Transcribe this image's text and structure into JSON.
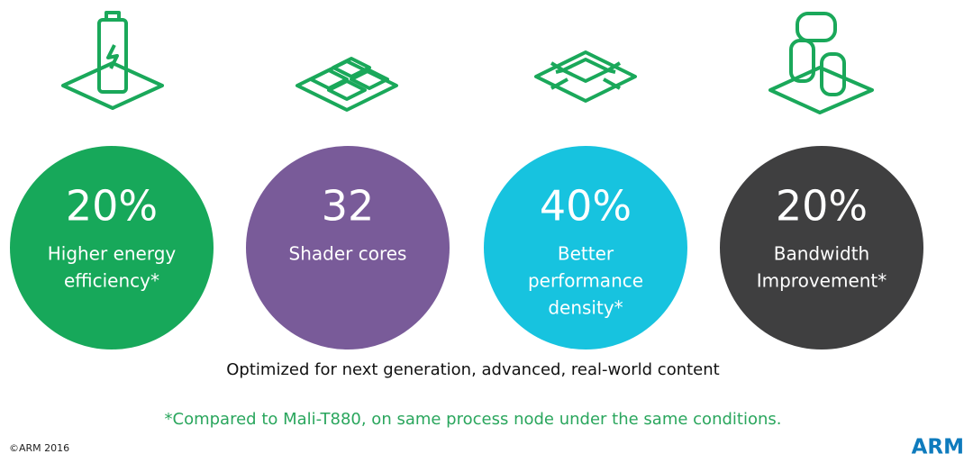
{
  "stats": [
    {
      "value": "20%",
      "label": [
        "Higher energy",
        "efficiency*"
      ],
      "color": "#17a85a"
    },
    {
      "value": "32",
      "label": [
        "Shader cores"
      ],
      "color": "#795b99"
    },
    {
      "value": "40%",
      "label": [
        "Better",
        "performance",
        "density*"
      ],
      "color": "#17c3df"
    },
    {
      "value": "20%",
      "label": [
        "Bandwidth",
        "Improvement*"
      ],
      "color": "#3f3f40"
    }
  ],
  "caption": "Optimized for next generation, advanced, real-world content",
  "footnote": "*Compared to Mali-T880, on same process node under the same conditions.",
  "copyright": "©ARM 2016",
  "logo": "ARM"
}
